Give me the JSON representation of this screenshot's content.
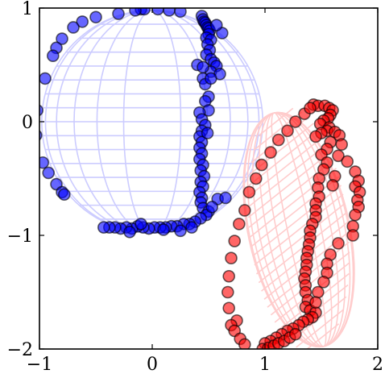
{
  "chart_data": {
    "type": "scatter",
    "title": "",
    "xlabel": "",
    "ylabel": "",
    "xlim": [
      -1,
      2
    ],
    "ylim": [
      -2,
      1
    ],
    "grid": false,
    "legend": "none",
    "x_ticks": [
      {
        "value": -1,
        "label": "−1"
      },
      {
        "value": 0,
        "label": "0"
      },
      {
        "value": 1,
        "label": "1"
      },
      {
        "value": 2,
        "label": "2"
      }
    ],
    "y_ticks": [
      {
        "value": 1,
        "label": "1"
      },
      {
        "value": 0,
        "label": "0"
      },
      {
        "value": -1,
        "label": "−1"
      },
      {
        "value": -2,
        "label": "−2"
      }
    ],
    "surfaces": [
      {
        "kind": "sphere-wireframe",
        "color": "#ccccff",
        "center": [
          0,
          0
        ],
        "radius": 0.98
      },
      {
        "kind": "ellipsoid-hatched",
        "color": "#ffcccc",
        "center": [
          1.3,
          -0.95
        ],
        "rx": 0.45,
        "ry": 1.05,
        "tilt_deg": -12
      }
    ],
    "series": [
      {
        "color": "#0000ff",
        "points": [
          [
            -0.1,
            0.99
          ],
          [
            -0.07,
            0.99
          ],
          [
            0.05,
            0.99
          ],
          [
            0.15,
            0.98
          ],
          [
            0.25,
            0.97
          ],
          [
            -0.15,
            0.98
          ],
          [
            -0.3,
            0.95
          ],
          [
            -0.5,
            0.92
          ],
          [
            -0.62,
            0.88
          ],
          [
            -0.7,
            0.83
          ],
          [
            -0.8,
            0.73
          ],
          [
            -0.85,
            0.65
          ],
          [
            -0.88,
            0.58
          ],
          [
            -0.95,
            0.38
          ],
          [
            -1.02,
            0.1
          ],
          [
            -1.03,
            -0.12
          ],
          [
            -0.97,
            -0.36
          ],
          [
            -0.92,
            -0.45
          ],
          [
            -0.85,
            -0.55
          ],
          [
            -0.8,
            -0.62
          ],
          [
            -0.78,
            -0.64
          ],
          [
            0.44,
            0.93
          ],
          [
            0.45,
            0.9
          ],
          [
            0.46,
            0.88
          ],
          [
            0.47,
            0.87
          ],
          [
            0.48,
            0.85
          ],
          [
            0.49,
            0.83
          ],
          [
            0.5,
            0.82
          ],
          [
            0.51,
            0.8
          ],
          [
            0.5,
            0.77
          ],
          [
            0.48,
            0.74
          ],
          [
            0.52,
            0.72
          ],
          [
            0.49,
            0.68
          ],
          [
            0.51,
            0.63
          ],
          [
            0.48,
            0.59
          ],
          [
            0.52,
            0.55
          ],
          [
            0.55,
            0.52
          ],
          [
            0.57,
            0.49
          ],
          [
            0.52,
            0.44
          ],
          [
            0.6,
            0.42
          ],
          [
            0.45,
            0.38
          ],
          [
            0.47,
            0.33
          ],
          [
            0.52,
            0.38
          ],
          [
            0.5,
            0.22
          ],
          [
            0.47,
            0.18
          ],
          [
            0.5,
            0.1
          ],
          [
            0.42,
            0.08
          ],
          [
            0.44,
            0.02
          ],
          [
            0.47,
            -0.03
          ],
          [
            0.44,
            -0.08
          ],
          [
            0.42,
            -0.13
          ],
          [
            0.44,
            -0.18
          ],
          [
            0.42,
            -0.23
          ],
          [
            0.44,
            -0.28
          ],
          [
            0.42,
            -0.33
          ],
          [
            0.45,
            -0.38
          ],
          [
            0.43,
            -0.43
          ],
          [
            0.46,
            -0.48
          ],
          [
            0.43,
            -0.53
          ],
          [
            0.45,
            -0.57
          ],
          [
            0.42,
            -0.62
          ],
          [
            0.44,
            -0.67
          ],
          [
            0.43,
            -0.71
          ],
          [
            0.45,
            -0.76
          ],
          [
            0.5,
            -0.79
          ],
          [
            0.48,
            -0.82
          ],
          [
            0.43,
            -0.85
          ],
          [
            0.38,
            -0.88
          ],
          [
            0.33,
            -0.9
          ],
          [
            0.28,
            -0.9
          ],
          [
            0.22,
            -0.92
          ],
          [
            0.17,
            -0.92
          ],
          [
            0.12,
            -0.93
          ],
          [
            0.07,
            -0.93
          ],
          [
            0.02,
            -0.93
          ],
          [
            -0.03,
            -0.94
          ],
          [
            -0.08,
            -0.93
          ],
          [
            -0.13,
            -0.92
          ],
          [
            -0.18,
            -0.94
          ],
          [
            -0.23,
            -0.93
          ],
          [
            -0.28,
            -0.94
          ],
          [
            -0.33,
            -0.93
          ],
          [
            -0.38,
            -0.93
          ],
          [
            -0.43,
            -0.93
          ],
          [
            -0.1,
            -0.9
          ],
          [
            0.1,
            -0.95
          ],
          [
            0.25,
            -0.96
          ],
          [
            -0.2,
            -0.97
          ],
          [
            0.58,
            -0.68
          ],
          [
            0.65,
            -0.67
          ],
          [
            0.53,
            -0.75
          ],
          [
            0.35,
            -0.93
          ],
          [
            0.4,
            0.5
          ],
          [
            0.62,
            0.78
          ],
          [
            0.57,
            0.85
          ],
          [
            0.45,
            0.48
          ],
          [
            0.49,
            -0.1
          ]
        ]
      },
      {
        "color": "#ff0000",
        "points": [
          [
            1.43,
            0.15
          ],
          [
            1.47,
            0.14
          ],
          [
            1.53,
            0.14
          ],
          [
            1.57,
            0.12
          ],
          [
            1.6,
            0.1
          ],
          [
            1.58,
            0.06
          ],
          [
            1.56,
            0.03
          ],
          [
            1.52,
            0.01
          ],
          [
            1.49,
            -0.02
          ],
          [
            1.57,
            -0.05
          ],
          [
            1.55,
            -0.08
          ],
          [
            1.5,
            -0.1
          ],
          [
            1.45,
            -0.13
          ],
          [
            1.62,
            -0.09
          ],
          [
            1.66,
            -0.12
          ],
          [
            1.58,
            -0.18
          ],
          [
            1.55,
            -0.24
          ],
          [
            1.5,
            -0.29
          ],
          [
            1.65,
            -0.3
          ],
          [
            1.55,
            -0.36
          ],
          [
            1.52,
            -0.42
          ],
          [
            1.48,
            -0.5
          ],
          [
            1.47,
            -0.58
          ],
          [
            1.62,
            -0.48
          ],
          [
            1.6,
            -0.56
          ],
          [
            1.48,
            -0.66
          ],
          [
            1.45,
            -0.72
          ],
          [
            1.45,
            -0.78
          ],
          [
            1.45,
            -0.84
          ],
          [
            1.42,
            -0.9
          ],
          [
            1.4,
            -0.96
          ],
          [
            1.4,
            -1.02
          ],
          [
            1.39,
            -1.08
          ],
          [
            1.38,
            -1.14
          ],
          [
            1.37,
            -1.2
          ],
          [
            1.37,
            -1.26
          ],
          [
            1.36,
            -1.32
          ],
          [
            1.35,
            -1.38
          ],
          [
            1.36,
            -1.44
          ],
          [
            1.36,
            -1.5
          ],
          [
            1.38,
            -1.57
          ],
          [
            1.36,
            -1.63
          ],
          [
            1.4,
            -1.66
          ],
          [
            1.45,
            -1.68
          ],
          [
            1.42,
            -1.72
          ],
          [
            1.38,
            -1.74
          ],
          [
            1.34,
            -1.76
          ],
          [
            1.3,
            -1.79
          ],
          [
            1.25,
            -1.82
          ],
          [
            1.2,
            -1.84
          ],
          [
            1.15,
            -1.87
          ],
          [
            1.1,
            -1.9
          ],
          [
            1.05,
            -1.93
          ],
          [
            1.0,
            -1.95
          ],
          [
            0.98,
            -2.0
          ],
          [
            1.03,
            -1.99
          ],
          [
            1.08,
            -1.97
          ],
          [
            1.12,
            -1.95
          ],
          [
            1.17,
            -1.93
          ],
          [
            1.22,
            -1.9
          ],
          [
            1.27,
            -1.87
          ],
          [
            0.75,
            -1.75
          ],
          [
            0.7,
            -1.79
          ],
          [
            0.73,
            -1.84
          ],
          [
            0.78,
            -1.91
          ],
          [
            0.82,
            -1.96
          ],
          [
            0.68,
            -1.64
          ],
          [
            0.67,
            -1.5
          ],
          [
            0.68,
            -1.36
          ],
          [
            0.7,
            -1.2
          ],
          [
            0.73,
            -1.05
          ],
          [
            0.77,
            -0.9
          ],
          [
            0.82,
            -0.78
          ],
          [
            0.86,
            -0.62
          ],
          [
            0.92,
            -0.5
          ],
          [
            0.97,
            -0.38
          ],
          [
            1.05,
            -0.27
          ],
          [
            1.12,
            -0.16
          ],
          [
            1.2,
            -0.08
          ],
          [
            1.27,
            0.0
          ],
          [
            1.35,
            0.07
          ],
          [
            1.4,
            0.12
          ],
          [
            1.8,
            -0.44
          ],
          [
            1.83,
            -0.52
          ],
          [
            1.8,
            -0.57
          ],
          [
            1.84,
            -0.62
          ],
          [
            1.82,
            -0.69
          ],
          [
            1.83,
            -0.75
          ],
          [
            1.8,
            -0.82
          ],
          [
            1.78,
            -0.92
          ],
          [
            1.78,
            -1.0
          ],
          [
            1.65,
            -1.07
          ],
          [
            1.58,
            -1.17
          ],
          [
            1.55,
            -1.25
          ],
          [
            1.55,
            -1.33
          ],
          [
            1.52,
            -1.41
          ],
          [
            1.47,
            -1.5
          ],
          [
            1.45,
            -1.59
          ],
          [
            1.68,
            -0.2
          ],
          [
            1.73,
            -0.35
          ]
        ]
      }
    ]
  }
}
